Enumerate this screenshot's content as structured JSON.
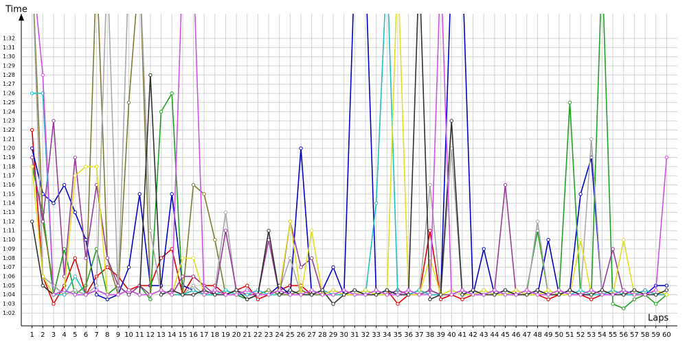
{
  "chart_data": {
    "type": "line",
    "ylabel": "Time",
    "xlabel": "Laps",
    "xlim": [
      0,
      61
    ],
    "ylim": [
      60.6,
      94.7
    ],
    "grid": true,
    "xticks": [
      1,
      2,
      3,
      4,
      5,
      6,
      7,
      8,
      9,
      10,
      11,
      12,
      13,
      14,
      15,
      16,
      17,
      18,
      19,
      20,
      21,
      22,
      23,
      24,
      25,
      26,
      27,
      28,
      29,
      30,
      31,
      32,
      33,
      34,
      35,
      36,
      37,
      38,
      39,
      40,
      41,
      42,
      43,
      44,
      45,
      46,
      47,
      48,
      49,
      50,
      51,
      52,
      53,
      54,
      55,
      56,
      57,
      58,
      59,
      60
    ],
    "yticks": [
      {
        "value": 62,
        "label": "1:02"
      },
      {
        "value": 63,
        "label": "1:03"
      },
      {
        "value": 64,
        "label": "1:04"
      },
      {
        "value": 65,
        "label": "1:05"
      },
      {
        "value": 66,
        "label": "1:06"
      },
      {
        "value": 67,
        "label": "1:07"
      },
      {
        "value": 68,
        "label": "1:08"
      },
      {
        "value": 69,
        "label": "1:09"
      },
      {
        "value": 70,
        "label": "1:10"
      },
      {
        "value": 71,
        "label": "1:11"
      },
      {
        "value": 72,
        "label": "1:12"
      },
      {
        "value": 73,
        "label": "1:13"
      },
      {
        "value": 74,
        "label": "1:14"
      },
      {
        "value": 75,
        "label": "1:15"
      },
      {
        "value": 76,
        "label": "1:16"
      },
      {
        "value": 77,
        "label": "1:17"
      },
      {
        "value": 78,
        "label": "1:18"
      },
      {
        "value": 79,
        "label": "1:19"
      },
      {
        "value": 80,
        "label": "1:20"
      },
      {
        "value": 81,
        "label": "1:21"
      },
      {
        "value": 82,
        "label": "1:22"
      },
      {
        "value": 83,
        "label": "1:23"
      },
      {
        "value": 84,
        "label": "1:24"
      },
      {
        "value": 85,
        "label": "1:25"
      },
      {
        "value": 86,
        "label": "1:26"
      },
      {
        "value": 87,
        "label": "1:27"
      },
      {
        "value": 88,
        "label": "1:28"
      },
      {
        "value": 89,
        "label": "1:29"
      },
      {
        "value": 90,
        "label": "1:30"
      },
      {
        "value": 91,
        "label": "1:31"
      },
      {
        "value": 92,
        "label": "1:32"
      }
    ],
    "x": [
      1,
      2,
      3,
      4,
      5,
      6,
      7,
      8,
      9,
      10,
      11,
      12,
      13,
      14,
      15,
      16,
      17,
      18,
      19,
      20,
      21,
      22,
      23,
      24,
      25,
      26,
      27,
      28,
      29,
      30,
      31,
      32,
      33,
      34,
      35,
      36,
      37,
      38,
      39,
      40,
      41,
      42,
      43,
      44,
      45,
      46,
      47,
      48,
      49,
      50,
      51,
      52,
      53,
      54,
      55,
      56,
      57,
      58,
      59,
      60
    ],
    "series": [
      {
        "color": "#e00000",
        "values": [
          82,
          66,
          63,
          65,
          68,
          64,
          66,
          67,
          66,
          64.5,
          65,
          65,
          68,
          69,
          64,
          66,
          65,
          65,
          64,
          64.5,
          65,
          63.5,
          64,
          64.5,
          65,
          65,
          64,
          64.5,
          64,
          64,
          64.5,
          64,
          64,
          64.5,
          63,
          64,
          64,
          71,
          63.5,
          64,
          63.5,
          64,
          64.5,
          64,
          64,
          64.5,
          64,
          64,
          63.5,
          64,
          64.5,
          64,
          63.5,
          64,
          64.5,
          64,
          64,
          64.5,
          64,
          64
        ]
      },
      {
        "color": "#0000c8",
        "values": [
          80,
          75,
          74,
          76,
          73,
          70,
          64,
          63.5,
          64,
          67,
          75,
          65,
          65,
          75,
          65,
          64.5,
          64,
          64.5,
          64,
          64,
          63.5,
          64,
          64,
          65,
          64,
          80,
          64,
          64.5,
          67,
          64,
          100,
          100,
          64,
          64.5,
          64,
          64,
          64.5,
          64,
          64,
          100,
          100,
          64,
          69,
          64,
          64.5,
          64,
          64,
          64,
          70,
          64,
          64.5,
          75,
          79,
          64,
          64,
          64.5,
          64,
          64,
          65,
          65
        ]
      },
      {
        "color": "#20a020",
        "values": [
          78,
          73,
          64,
          69,
          64,
          65,
          69,
          64,
          65,
          64,
          65,
          63.5,
          84,
          86,
          64,
          64.5,
          64,
          64,
          64.5,
          64,
          63.5,
          64,
          64.5,
          64,
          64,
          64.5,
          64,
          64,
          64.5,
          64,
          64,
          64.5,
          64,
          64,
          64.5,
          64,
          64,
          64.5,
          64,
          64,
          64.5,
          64,
          64,
          64.5,
          64,
          64,
          64.5,
          71,
          64,
          64,
          85,
          64,
          64,
          100,
          63,
          62.5,
          63.5,
          64,
          63,
          64
        ]
      },
      {
        "color": "#807a30",
        "values": [
          100,
          72,
          65,
          64,
          64.5,
          64,
          100,
          68,
          64,
          85,
          100,
          64,
          64.5,
          64,
          64,
          76,
          75,
          70,
          64,
          64.5,
          64,
          64,
          64.5,
          64,
          64,
          64.5,
          64,
          64,
          64.5,
          64,
          64,
          64.5,
          64,
          64,
          64.5,
          64,
          64,
          64.5,
          64,
          64,
          64.5,
          64,
          64,
          64.5,
          64,
          64,
          64.5,
          64,
          64,
          64.5,
          64,
          64,
          64.5,
          64,
          64,
          64.5,
          64,
          64,
          64.5,
          64
        ]
      },
      {
        "color": "#a8a8a8",
        "values": [
          100,
          66,
          65,
          64,
          64.5,
          64,
          65,
          100,
          64,
          100,
          100,
          71,
          64,
          64.5,
          64,
          65,
          64,
          64.5,
          73,
          64,
          64.5,
          64,
          64,
          64.5,
          68,
          64,
          64.5,
          64,
          64,
          64.5,
          64,
          64,
          64.5,
          64,
          64,
          64.5,
          64,
          76,
          64,
          80,
          64,
          64.5,
          64,
          64,
          64.5,
          64,
          64,
          72,
          64,
          64.5,
          64,
          64,
          81,
          64,
          64.5,
          64,
          64,
          64.5,
          64,
          64
        ]
      },
      {
        "color": "#9a3a9a",
        "values": [
          79,
          72,
          83,
          66,
          79,
          68,
          76,
          68,
          65,
          64,
          65,
          64,
          64.5,
          64,
          66,
          66,
          65,
          64,
          71,
          64.5,
          64,
          64,
          70,
          64,
          72,
          67,
          68,
          64,
          64.5,
          64,
          64,
          64.5,
          64,
          64,
          64.5,
          64,
          64,
          64.5,
          64,
          64,
          64.5,
          64,
          64,
          64.5,
          76,
          64,
          64,
          64.5,
          64,
          64,
          64.5,
          64,
          64,
          64.5,
          69,
          64,
          64,
          64.5,
          64,
          64
        ]
      },
      {
        "color": "#20c0c0",
        "values": [
          86,
          86,
          64,
          64,
          66,
          64,
          64.5,
          64,
          64,
          64.5,
          64,
          64,
          64.5,
          64,
          64,
          64.5,
          64,
          64,
          64.5,
          64,
          64,
          64.5,
          64,
          64,
          64.5,
          64,
          64,
          64.5,
          64,
          64,
          64.5,
          64,
          74,
          100,
          64,
          64,
          64.5,
          64,
          64,
          64.5,
          64,
          64,
          64.5,
          64,
          64,
          64.5,
          64,
          64,
          64.5,
          64,
          64,
          64.5,
          64,
          64,
          64.5,
          64,
          64,
          64.5,
          64,
          64
        ]
      },
      {
        "color": "#e0e020",
        "values": [
          78,
          66,
          64,
          64.5,
          77,
          78,
          78,
          64,
          64,
          64.5,
          64,
          64,
          64.5,
          64,
          68,
          68,
          64,
          64.5,
          64,
          64,
          64.5,
          64,
          64,
          64.5,
          72,
          64,
          71,
          64,
          64.5,
          64,
          64,
          64.5,
          64,
          64,
          100,
          64,
          64,
          68,
          64,
          64.5,
          64,
          64,
          64.5,
          64,
          64,
          64.5,
          64,
          64,
          64.5,
          64,
          64,
          70,
          64,
          64.5,
          64,
          70,
          64,
          64,
          64.5,
          64
        ]
      },
      {
        "color": "#303030",
        "values": [
          72,
          65,
          64,
          64.5,
          64,
          64,
          64.5,
          64,
          64,
          64.5,
          64,
          88,
          64,
          64.5,
          64,
          64,
          64.5,
          64,
          64,
          64.5,
          63.5,
          64,
          71,
          64,
          64.5,
          64,
          64,
          64.5,
          63,
          64,
          64.5,
          64,
          64,
          64.5,
          64,
          64,
          100,
          63.5,
          64,
          83,
          64,
          64.5,
          64,
          64,
          64.5,
          64,
          64,
          64.5,
          64,
          64,
          64.5,
          64,
          64,
          64.5,
          64,
          64,
          64.5,
          64,
          64,
          64.5
        ]
      },
      {
        "color": "#d050e8",
        "values": [
          100,
          88,
          64,
          64.5,
          64,
          64,
          64.5,
          64,
          64,
          64.5,
          64,
          64,
          64.5,
          64,
          100,
          100,
          64,
          64.5,
          64,
          64,
          64.5,
          64,
          64,
          64.5,
          64,
          64,
          64.5,
          64,
          64,
          64.5,
          64,
          64,
          64.5,
          64,
          64,
          64.5,
          64,
          64,
          100,
          64,
          64.5,
          64,
          64,
          64.5,
          64,
          64,
          64.5,
          64,
          64,
          64.5,
          64,
          64,
          64.5,
          64,
          64,
          64.5,
          64,
          64,
          64.5,
          79
        ]
      }
    ]
  }
}
